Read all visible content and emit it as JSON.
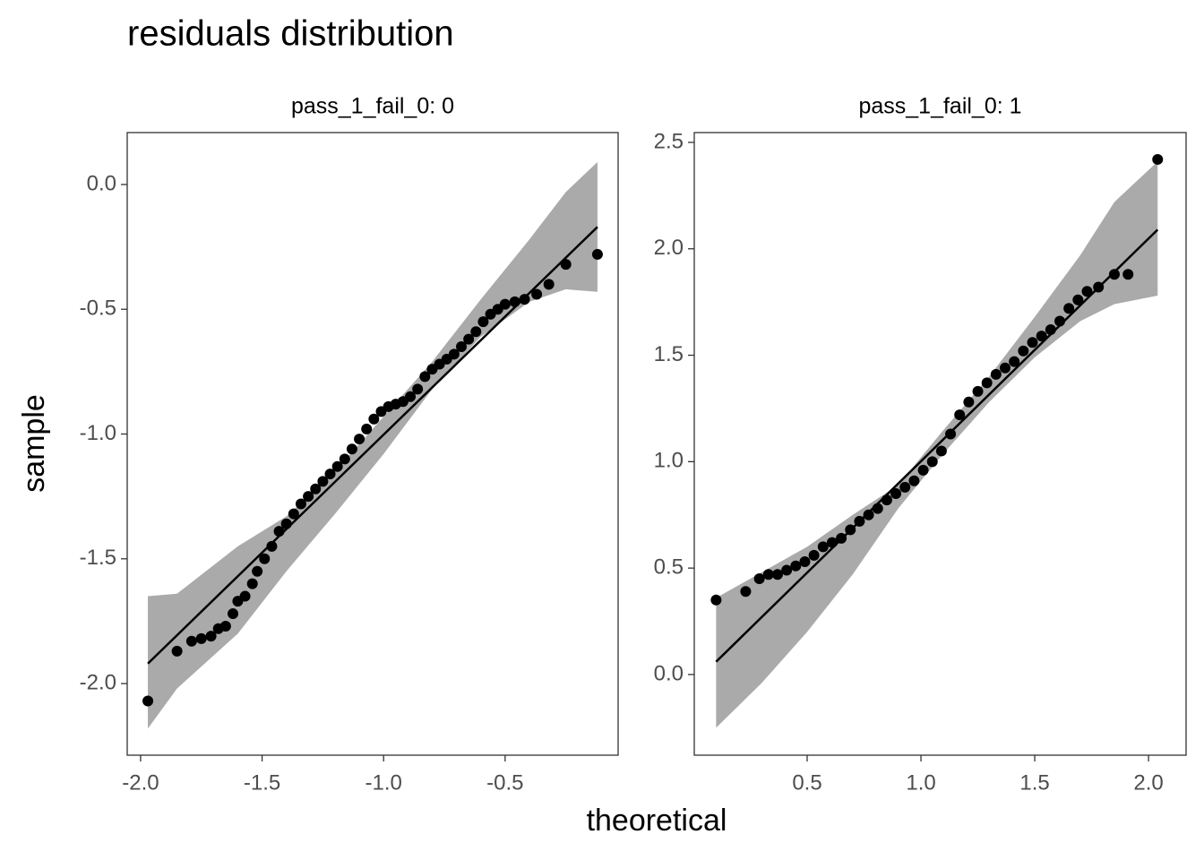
{
  "title": "residuals distribution",
  "x_label": "theoretical",
  "y_label": "sample",
  "chart_data": [
    {
      "type": "scatter",
      "title": "pass_1_fail_0: 0",
      "color": "#000000",
      "band_color": "#aaaaaa",
      "x": [
        -1.97,
        -1.85,
        -1.79,
        -1.75,
        -1.71,
        -1.68,
        -1.65,
        -1.62,
        -1.6,
        -1.57,
        -1.54,
        -1.52,
        -1.49,
        -1.46,
        -1.43,
        -1.4,
        -1.37,
        -1.34,
        -1.31,
        -1.28,
        -1.25,
        -1.22,
        -1.19,
        -1.16,
        -1.13,
        -1.1,
        -1.07,
        -1.04,
        -1.01,
        -0.98,
        -0.95,
        -0.92,
        -0.89,
        -0.86,
        -0.83,
        -0.8,
        -0.77,
        -0.74,
        -0.71,
        -0.68,
        -0.65,
        -0.62,
        -0.59,
        -0.56,
        -0.53,
        -0.5,
        -0.46,
        -0.42,
        -0.37,
        -0.32,
        -0.25,
        -0.12
      ],
      "values": [
        -2.07,
        -1.87,
        -1.83,
        -1.82,
        -1.81,
        -1.78,
        -1.77,
        -1.72,
        -1.67,
        -1.65,
        -1.6,
        -1.55,
        -1.5,
        -1.45,
        -1.39,
        -1.36,
        -1.32,
        -1.28,
        -1.25,
        -1.22,
        -1.19,
        -1.16,
        -1.13,
        -1.1,
        -1.06,
        -1.02,
        -0.98,
        -0.94,
        -0.91,
        -0.89,
        -0.88,
        -0.87,
        -0.85,
        -0.82,
        -0.77,
        -0.74,
        -0.72,
        -0.7,
        -0.68,
        -0.65,
        -0.62,
        -0.59,
        -0.55,
        -0.52,
        -0.5,
        -0.48,
        -0.47,
        -0.46,
        -0.44,
        -0.4,
        -0.32,
        -0.28
      ],
      "line_x": [
        -1.97,
        -0.12
      ],
      "line_values": [
        -1.92,
        -0.17
      ],
      "band_x": [
        -1.97,
        -1.85,
        -1.6,
        -1.4,
        -1.2,
        -1.0,
        -0.8,
        -0.6,
        -0.4,
        -0.25,
        -0.12
      ],
      "band_lower": [
        -2.18,
        -2.02,
        -1.8,
        -1.55,
        -1.32,
        -1.08,
        -0.82,
        -0.61,
        -0.47,
        -0.42,
        -0.43
      ],
      "band_upper": [
        -1.65,
        -1.64,
        -1.45,
        -1.33,
        -1.15,
        -0.93,
        -0.71,
        -0.46,
        -0.22,
        -0.03,
        0.09
      ],
      "xlim": [
        -2.055,
        -0.035
      ],
      "ylim": [
        -2.287,
        0.208
      ],
      "xticks": [
        {
          "value": -2,
          "label": "-2.0"
        },
        -1.5,
        {
          "value": -1,
          "label": "-1.0"
        },
        -0.5
      ],
      "yticks": [
        {
          "value": 0,
          "label": "0.0"
        },
        -0.5,
        {
          "value": -1,
          "label": "-1.0"
        },
        -1.5,
        {
          "value": -2,
          "label": "-2.0"
        }
      ]
    },
    {
      "type": "scatter",
      "title": "pass_1_fail_0: 1",
      "color": "#000000",
      "band_color": "#aaaaaa",
      "x": [
        0.1,
        0.23,
        0.29,
        0.33,
        0.37,
        0.41,
        0.45,
        0.49,
        0.53,
        0.57,
        0.61,
        0.65,
        0.69,
        0.73,
        0.77,
        0.81,
        0.85,
        0.89,
        0.93,
        0.97,
        1.01,
        1.05,
        1.09,
        1.13,
        1.17,
        1.21,
        1.25,
        1.29,
        1.33,
        1.37,
        1.41,
        1.45,
        1.49,
        1.53,
        1.57,
        1.61,
        1.65,
        1.69,
        1.73,
        1.78,
        1.85,
        1.91,
        2.04
      ],
      "values": [
        0.35,
        0.39,
        0.45,
        0.47,
        0.47,
        0.49,
        0.51,
        0.53,
        0.56,
        0.6,
        0.62,
        0.64,
        0.68,
        0.72,
        0.75,
        0.78,
        0.82,
        0.85,
        0.88,
        0.91,
        0.96,
        1.0,
        1.05,
        1.13,
        1.22,
        1.28,
        1.33,
        1.37,
        1.41,
        1.44,
        1.47,
        1.52,
        1.56,
        1.59,
        1.62,
        1.66,
        1.72,
        1.76,
        1.8,
        1.82,
        1.88,
        1.88,
        2.42
      ],
      "line_x": [
        0.1,
        2.04
      ],
      "line_values": [
        0.06,
        2.09
      ],
      "band_x": [
        0.1,
        0.3,
        0.5,
        0.7,
        0.9,
        1.1,
        1.3,
        1.5,
        1.7,
        1.85,
        2.04
      ],
      "band_lower": [
        -0.25,
        -0.04,
        0.2,
        0.47,
        0.78,
        1.04,
        1.28,
        1.49,
        1.66,
        1.74,
        1.78
      ],
      "band_upper": [
        0.36,
        0.48,
        0.6,
        0.75,
        0.89,
        1.15,
        1.4,
        1.68,
        1.97,
        2.22,
        2.41
      ],
      "xlim": [
        0.004,
        2.165
      ],
      "ylim": [
        -0.379,
        2.546
      ],
      "xticks": [
        0.5,
        {
          "value": 1,
          "label": "1.0"
        },
        1.5,
        {
          "value": 2,
          "label": "2.0"
        }
      ],
      "yticks": [
        {
          "value": 0,
          "label": "0.0"
        },
        0.5,
        {
          "value": 1,
          "label": "1.0"
        },
        1.5,
        {
          "value": 2,
          "label": "2.0"
        },
        2.5
      ]
    }
  ]
}
